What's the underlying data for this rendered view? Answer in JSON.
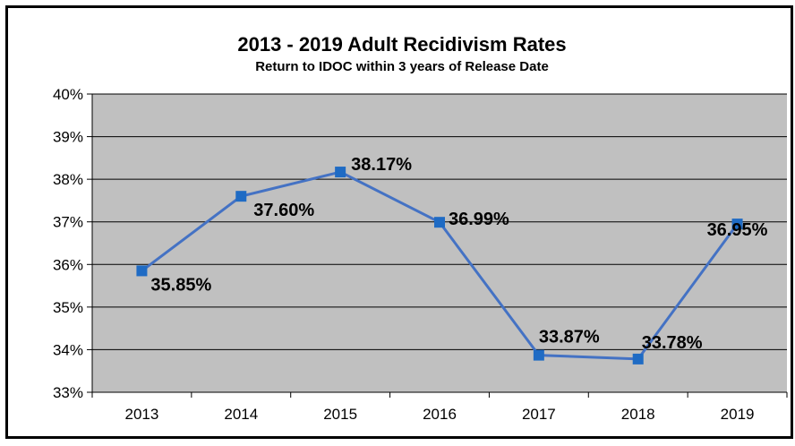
{
  "chart_data": {
    "type": "line",
    "title": "2013 - 2019 Adult Recidivism Rates",
    "subtitle": "Return to IDOC within 3 years of Release Date",
    "categories": [
      "2013",
      "2014",
      "2015",
      "2016",
      "2017",
      "2018",
      "2019"
    ],
    "series": [
      {
        "values": [
          35.85,
          37.6,
          38.17,
          36.99,
          33.87,
          33.78,
          36.95
        ],
        "data_labels": [
          "35.85%",
          "37.60%",
          "38.17%",
          "36.99%",
          "33.87%",
          "33.78%",
          "36.95%"
        ]
      }
    ],
    "y_ticks": [
      "33%",
      "34%",
      "35%",
      "36%",
      "37%",
      "38%",
      "39%",
      "40%"
    ],
    "ylim": [
      33,
      40
    ],
    "y_unit": "%",
    "grid": true,
    "legend": "none",
    "colors": {
      "line": "#4472c4",
      "marker": "#1f6bc4",
      "plot_background": "#c0c0c0",
      "gridline": "#000000"
    }
  }
}
